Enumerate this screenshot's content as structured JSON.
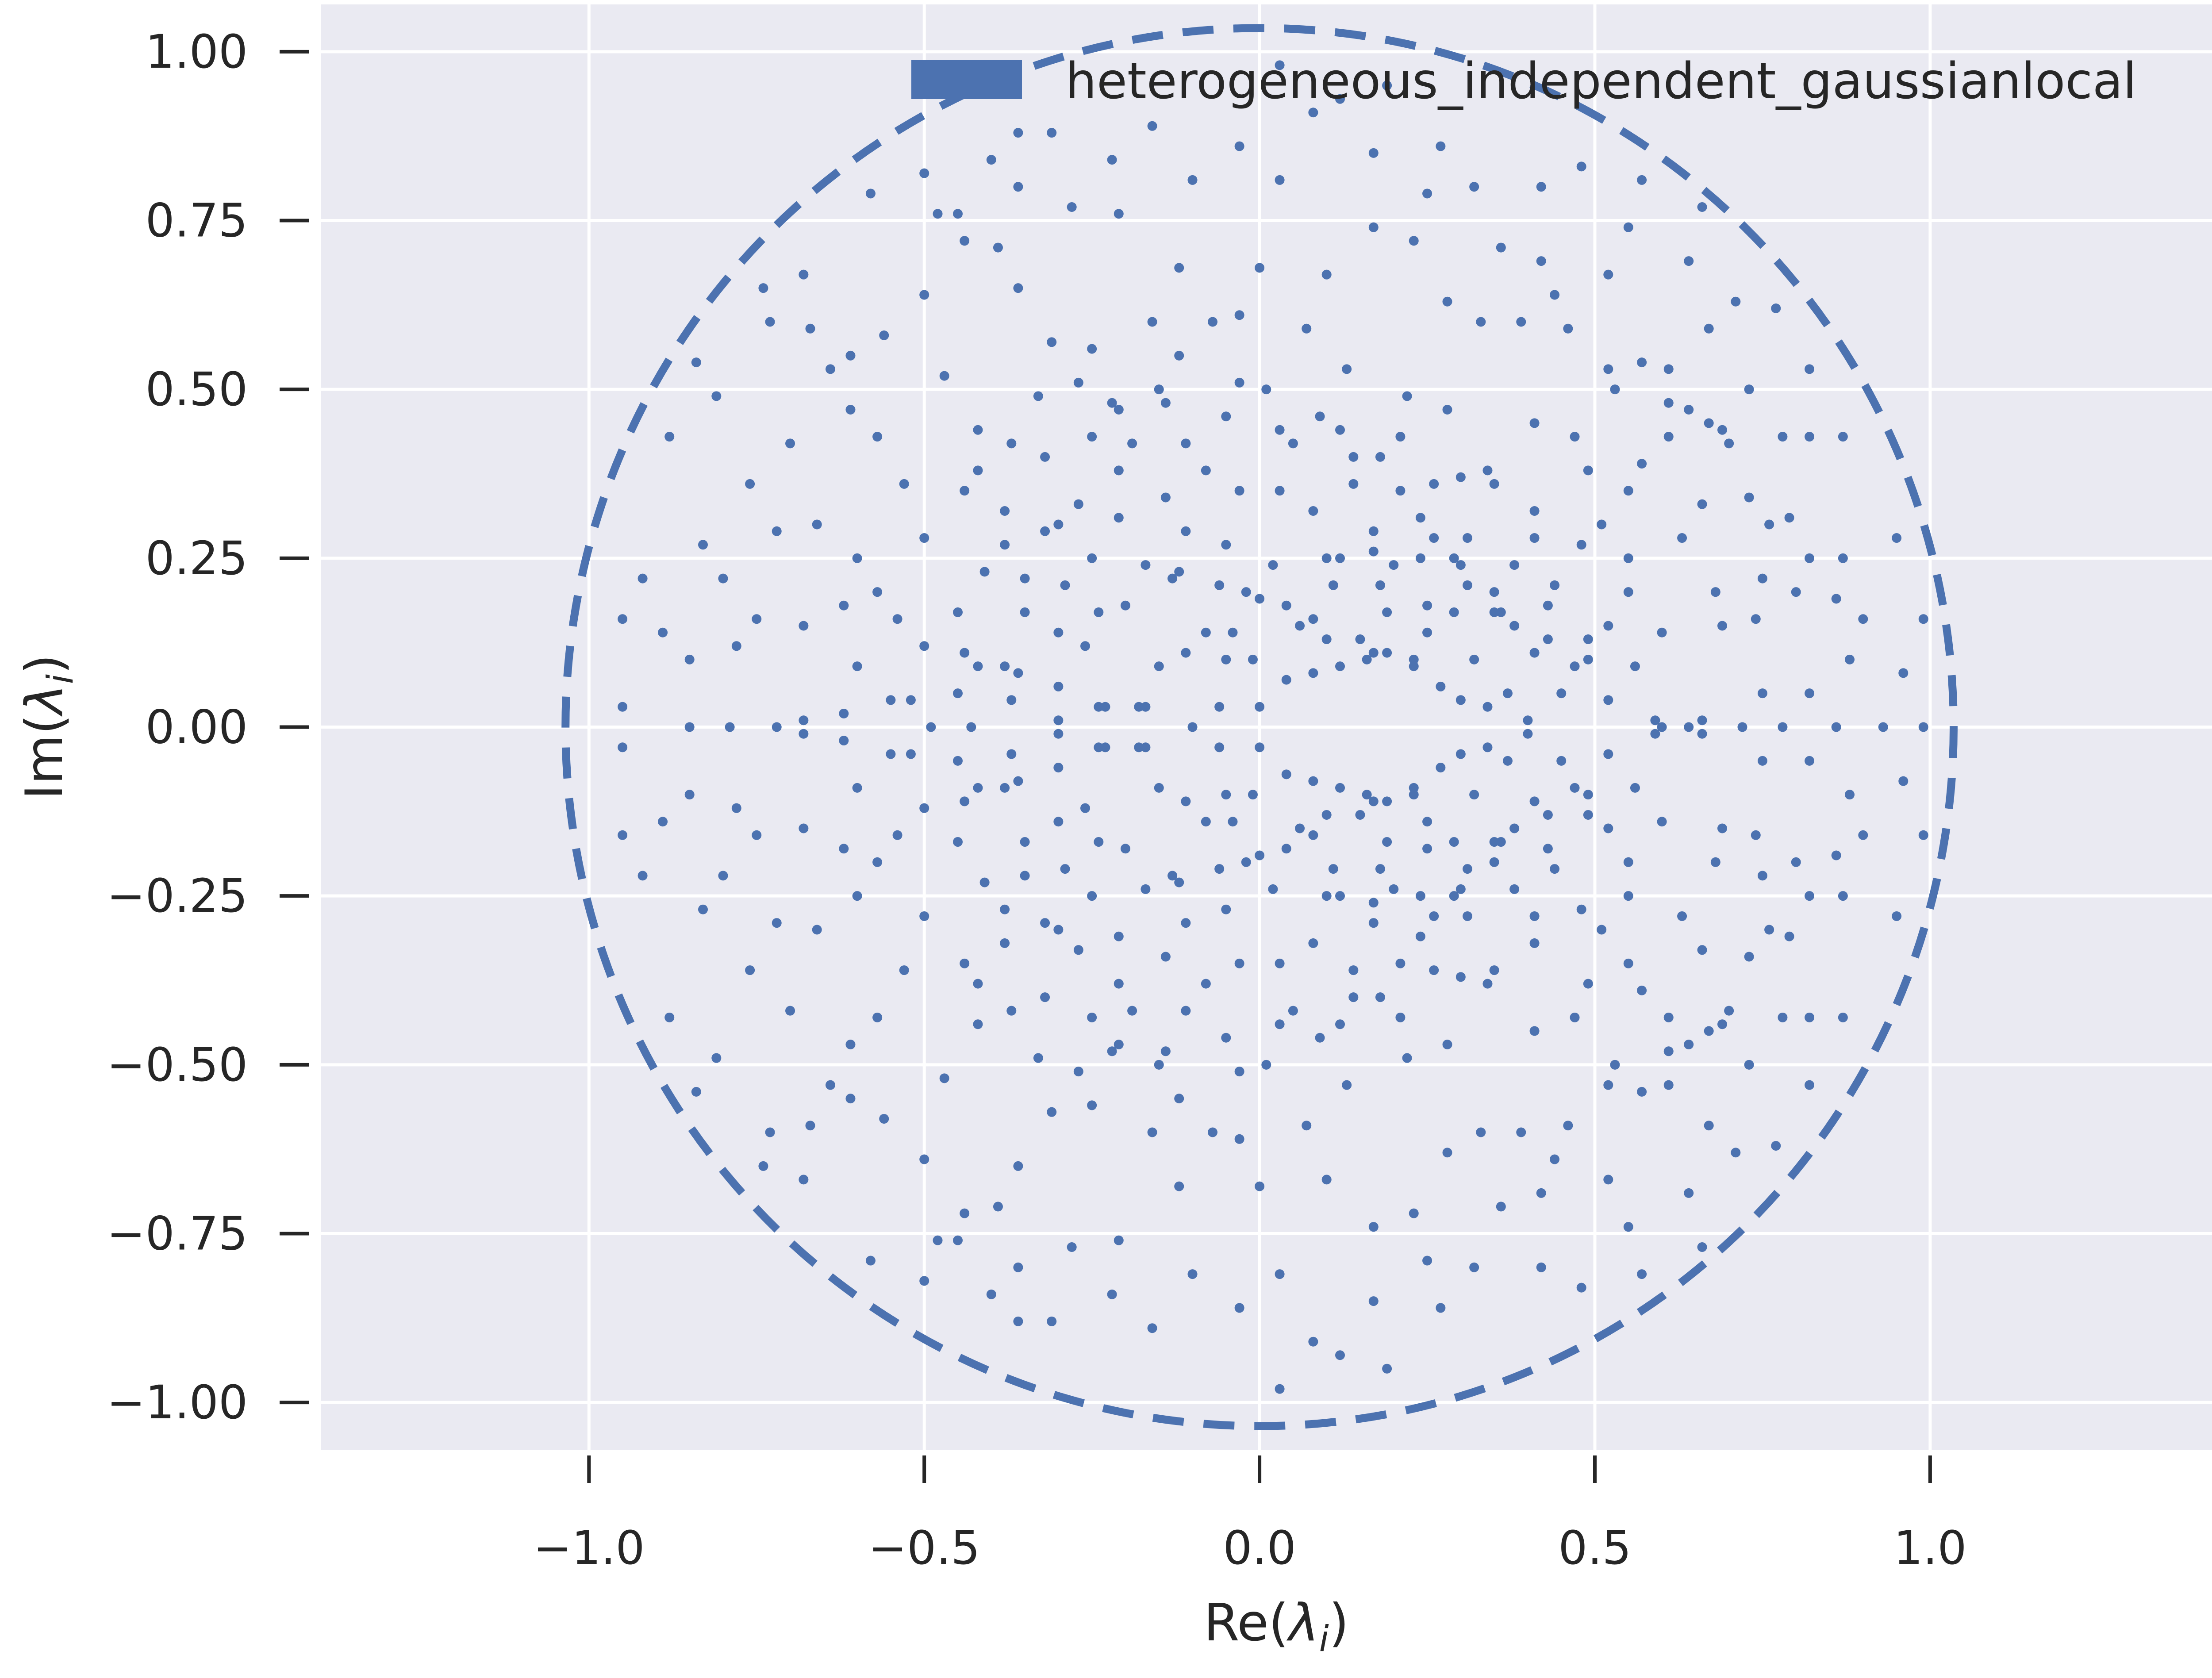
{
  "chart_data": {
    "type": "scatter",
    "title": "",
    "xlabel": "Re(λ_i)",
    "ylabel": "Im(λ_i)",
    "xlim": [
      -1.4,
      1.45
    ],
    "ylim": [
      -1.07,
      1.07
    ],
    "grid": true,
    "background": "#eaeaf2",
    "grid_color": "#ffffff",
    "series_color": "#4c72b0",
    "x_ticks": [
      {
        "value": -1.0,
        "label": "−1.0"
      },
      {
        "value": -0.5,
        "label": "−0.5"
      },
      {
        "value": 0.0,
        "label": "0.0"
      },
      {
        "value": 0.5,
        "label": "0.5"
      },
      {
        "value": 1.0,
        "label": "1.0"
      }
    ],
    "y_ticks": [
      {
        "value": 1.0,
        "label": "1.00"
      },
      {
        "value": 0.75,
        "label": "0.75"
      },
      {
        "value": 0.5,
        "label": "0.50"
      },
      {
        "value": 0.25,
        "label": "0.25"
      },
      {
        "value": 0.0,
        "label": "0.00"
      },
      {
        "value": -0.25,
        "label": "−0.25"
      },
      {
        "value": -0.5,
        "label": "−0.50"
      },
      {
        "value": -0.75,
        "label": "−0.75"
      },
      {
        "value": -1.0,
        "label": "−1.00"
      }
    ],
    "legend": {
      "label": "heterogeneous_independent_gaussianlocal",
      "placement": "top-right"
    },
    "reference_circle": {
      "center": [
        0,
        0
      ],
      "radius": 1.035,
      "style": "dashed"
    },
    "series": [
      {
        "name": "heterogeneous_independent_gaussianlocal",
        "points_upper": [
          [
            0.0,
            0.03
          ],
          [
            0.06,
            0.15
          ],
          [
            0.12,
            0.09
          ],
          [
            0.17,
            0.11
          ],
          [
            0.23,
            0.1
          ],
          [
            0.29,
            0.17
          ],
          [
            0.35,
            0.17
          ],
          [
            0.41,
            0.11
          ],
          [
            0.47,
            0.09
          ],
          [
            0.52,
            0.15
          ],
          [
            0.56,
            0.09
          ],
          [
            0.6,
            0.0
          ],
          [
            0.64,
            0.0
          ],
          [
            0.75,
            0.05
          ],
          [
            0.82,
            0.05
          ],
          [
            0.88,
            0.1
          ],
          [
            0.96,
            0.08
          ],
          [
            0.99,
            0.0
          ],
          [
            0.99,
            0.16
          ],
          [
            0.95,
            0.28
          ],
          [
            0.87,
            0.25
          ],
          [
            0.82,
            0.43
          ],
          [
            0.78,
            0.43
          ],
          [
            0.73,
            0.5
          ],
          [
            0.69,
            0.44
          ],
          [
            0.64,
            0.47
          ],
          [
            0.57,
            0.39
          ],
          [
            0.51,
            0.3
          ],
          [
            0.44,
            0.21
          ],
          [
            0.36,
            0.17
          ],
          [
            0.3,
            0.24
          ],
          [
            0.24,
            0.25
          ],
          [
            0.18,
            0.21
          ],
          [
            0.1,
            0.25
          ],
          [
            0.03,
            0.35
          ],
          [
            -0.03,
            0.35
          ],
          [
            -0.08,
            0.38
          ],
          [
            -0.14,
            0.48
          ],
          [
            -0.21,
            0.38
          ],
          [
            -0.27,
            0.33
          ],
          [
            -0.3,
            0.3
          ],
          [
            -0.38,
            0.27
          ],
          [
            -0.44,
            0.35
          ],
          [
            -0.5,
            0.28
          ],
          [
            -0.53,
            0.36
          ],
          [
            -0.57,
            0.43
          ],
          [
            -0.61,
            0.47
          ],
          [
            -0.64,
            0.53
          ],
          [
            -0.7,
            0.42
          ],
          [
            -0.76,
            0.36
          ],
          [
            -0.81,
            0.49
          ],
          [
            -0.84,
            0.54
          ],
          [
            -0.88,
            0.43
          ],
          [
            -0.95,
            0.16
          ],
          [
            -0.95,
            0.03
          ],
          [
            -0.92,
            0.22
          ],
          [
            -0.89,
            0.14
          ],
          [
            -0.83,
            0.27
          ],
          [
            -0.8,
            0.22
          ],
          [
            -0.75,
            0.16
          ],
          [
            -0.68,
            0.15
          ],
          [
            -0.62,
            0.18
          ],
          [
            -0.6,
            0.09
          ],
          [
            -0.52,
            0.04
          ],
          [
            -0.49,
            0.0
          ],
          [
            -0.43,
            0.0
          ],
          [
            -0.37,
            0.04
          ],
          [
            -0.3,
            0.01
          ],
          [
            -0.24,
            0.03
          ],
          [
            -0.17,
            0.03
          ],
          [
            -0.11,
            0.11
          ],
          [
            -0.05,
            0.1
          ],
          [
            0.02,
            0.24
          ],
          [
            0.08,
            0.32
          ],
          [
            0.12,
            0.25
          ],
          [
            0.17,
            0.26
          ],
          [
            0.24,
            0.31
          ],
          [
            0.3,
            0.37
          ],
          [
            0.35,
            0.36
          ],
          [
            0.41,
            0.45
          ],
          [
            0.47,
            0.43
          ],
          [
            0.53,
            0.5
          ],
          [
            0.61,
            0.53
          ],
          [
            0.67,
            0.59
          ],
          [
            0.71,
            0.63
          ],
          [
            0.77,
            0.62
          ],
          [
            0.82,
            0.53
          ],
          [
            0.87,
            0.43
          ],
          [
            0.82,
            0.25
          ],
          [
            0.8,
            0.2
          ],
          [
            0.74,
            0.16
          ],
          [
            0.68,
            0.2
          ],
          [
            0.6,
            0.14
          ],
          [
            0.55,
            0.2
          ],
          [
            0.49,
            0.13
          ],
          [
            0.43,
            0.18
          ],
          [
            0.38,
            0.24
          ],
          [
            0.31,
            0.28
          ],
          [
            0.26,
            0.36
          ],
          [
            0.18,
            0.4
          ],
          [
            0.12,
            0.44
          ],
          [
            0.05,
            0.42
          ],
          [
            0.01,
            0.5
          ],
          [
            -0.05,
            0.46
          ],
          [
            -0.11,
            0.42
          ],
          [
            -0.15,
            0.5
          ],
          [
            -0.21,
            0.47
          ],
          [
            -0.25,
            0.43
          ],
          [
            -0.32,
            0.4
          ],
          [
            -0.37,
            0.42
          ],
          [
            -0.42,
            0.44
          ],
          [
            -0.47,
            0.52
          ],
          [
            -0.5,
            0.64
          ],
          [
            -0.56,
            0.58
          ],
          [
            -0.61,
            0.55
          ],
          [
            -0.67,
            0.59
          ],
          [
            -0.73,
            0.6
          ],
          [
            -0.74,
            0.65
          ],
          [
            -0.68,
            0.67
          ],
          [
            -0.58,
            0.79
          ],
          [
            -0.5,
            0.82
          ],
          [
            -0.45,
            0.76
          ],
          [
            -0.39,
            0.71
          ],
          [
            -0.36,
            0.8
          ],
          [
            -0.31,
            0.88
          ],
          [
            -0.22,
            0.84
          ],
          [
            -0.16,
            0.89
          ],
          [
            -0.1,
            0.81
          ],
          [
            -0.03,
            0.86
          ],
          [
            0.03,
            0.81
          ],
          [
            0.1,
            0.67
          ],
          [
            0.17,
            0.74
          ],
          [
            0.23,
            0.72
          ],
          [
            0.28,
            0.63
          ],
          [
            0.33,
            0.6
          ],
          [
            0.39,
            0.6
          ],
          [
            0.44,
            0.64
          ],
          [
            0.52,
            0.67
          ],
          [
            0.55,
            0.74
          ],
          [
            0.64,
            0.69
          ],
          [
            0.66,
            0.77
          ],
          [
            0.57,
            0.81
          ],
          [
            0.48,
            0.83
          ],
          [
            0.42,
            0.8
          ],
          [
            0.32,
            0.8
          ],
          [
            0.25,
            0.79
          ],
          [
            0.17,
            0.85
          ],
          [
            0.08,
            0.91
          ],
          [
            0.03,
            0.98
          ],
          [
            0.12,
            0.93
          ],
          [
            0.19,
            0.95
          ],
          [
            0.27,
            0.86
          ],
          [
            0.36,
            0.71
          ],
          [
            0.42,
            0.69
          ],
          [
            0.46,
            0.59
          ],
          [
            0.52,
            0.53
          ],
          [
            0.57,
            0.54
          ],
          [
            0.61,
            0.48
          ],
          [
            0.66,
            0.33
          ],
          [
            0.7,
            0.42
          ],
          [
            0.76,
            0.3
          ],
          [
            0.75,
            0.22
          ],
          [
            0.69,
            0.15
          ],
          [
            0.63,
            0.28
          ],
          [
            0.55,
            0.25
          ],
          [
            0.48,
            0.27
          ],
          [
            0.41,
            0.32
          ],
          [
            0.34,
            0.38
          ],
          [
            0.28,
            0.47
          ],
          [
            0.22,
            0.49
          ],
          [
            0.13,
            0.53
          ],
          [
            0.07,
            0.59
          ],
          [
            0.0,
            0.68
          ],
          [
            -0.03,
            0.61
          ],
          [
            -0.12,
            0.55
          ],
          [
            -0.16,
            0.6
          ],
          [
            -0.25,
            0.56
          ],
          [
            -0.31,
            0.57
          ],
          [
            -0.36,
            0.65
          ],
          [
            -0.44,
            0.72
          ],
          [
            -0.48,
            0.76
          ],
          [
            -0.4,
            0.84
          ],
          [
            -0.36,
            0.88
          ],
          [
            -0.28,
            0.77
          ],
          [
            -0.21,
            0.76
          ],
          [
            -0.12,
            0.68
          ],
          [
            -0.07,
            0.6
          ],
          [
            -0.03,
            0.51
          ],
          [
            0.03,
            0.44
          ],
          [
            0.09,
            0.46
          ],
          [
            0.14,
            0.4
          ],
          [
            0.17,
            0.29
          ],
          [
            0.21,
            0.35
          ],
          [
            0.26,
            0.28
          ],
          [
            0.31,
            0.21
          ],
          [
            0.38,
            0.15
          ],
          [
            0.43,
            0.13
          ],
          [
            0.49,
            0.1
          ],
          [
            0.52,
            0.04
          ],
          [
            0.59,
            0.01
          ],
          [
            0.66,
            0.01
          ],
          [
            0.72,
            0.0
          ],
          [
            0.78,
            0.0
          ],
          [
            0.86,
            0.0
          ],
          [
            0.93,
            0.0
          ],
          [
            0.9,
            0.16
          ],
          [
            0.86,
            0.19
          ],
          [
            0.79,
            0.31
          ],
          [
            0.73,
            0.34
          ],
          [
            0.67,
            0.45
          ],
          [
            0.61,
            0.43
          ],
          [
            0.55,
            0.35
          ],
          [
            0.49,
            0.38
          ],
          [
            0.41,
            0.28
          ],
          [
            0.35,
            0.2
          ],
          [
            0.29,
            0.25
          ],
          [
            0.25,
            0.18
          ],
          [
            0.19,
            0.11
          ],
          [
            0.15,
            0.13
          ],
          [
            0.08,
            0.08
          ],
          [
            0.11,
            0.21
          ],
          [
            0.04,
            0.18
          ],
          [
            -0.02,
            0.2
          ],
          [
            -0.06,
            0.21
          ],
          [
            -0.13,
            0.22
          ],
          [
            -0.2,
            0.18
          ],
          [
            -0.24,
            0.17
          ],
          [
            -0.3,
            0.14
          ],
          [
            -0.35,
            0.17
          ],
          [
            -0.38,
            0.09
          ],
          [
            -0.44,
            0.11
          ],
          [
            -0.5,
            0.12
          ],
          [
            -0.54,
            0.16
          ],
          [
            -0.57,
            0.2
          ],
          [
            -0.6,
            0.25
          ],
          [
            -0.66,
            0.3
          ],
          [
            -0.72,
            0.29
          ],
          [
            -0.78,
            0.12
          ],
          [
            -0.85,
            0.1
          ],
          [
            -0.85,
            0.0
          ],
          [
            -0.79,
            0.0
          ],
          [
            -0.72,
            0.0
          ],
          [
            -0.68,
            0.01
          ],
          [
            -0.62,
            0.02
          ],
          [
            -0.55,
            0.04
          ],
          [
            -0.45,
            0.05
          ],
          [
            -0.42,
            0.09
          ],
          [
            -0.36,
            0.08
          ],
          [
            -0.3,
            0.06
          ],
          [
            -0.23,
            0.03
          ],
          [
            -0.18,
            0.03
          ],
          [
            -0.1,
            0.0
          ],
          [
            -0.06,
            0.03
          ],
          [
            0.04,
            0.07
          ],
          [
            0.1,
            0.13
          ],
          [
            0.16,
            0.1
          ],
          [
            0.23,
            0.09
          ],
          [
            0.27,
            0.06
          ],
          [
            0.3,
            0.04
          ],
          [
            0.34,
            0.03
          ],
          [
            0.4,
            0.01
          ],
          [
            0.45,
            0.05
          ],
          [
            -0.32,
            0.29
          ],
          [
            -0.38,
            0.32
          ],
          [
            -0.42,
            0.38
          ],
          [
            -0.33,
            0.49
          ],
          [
            -0.27,
            0.51
          ],
          [
            -0.22,
            0.48
          ],
          [
            -0.19,
            0.42
          ],
          [
            -0.14,
            0.34
          ],
          [
            -0.11,
            0.29
          ],
          [
            -0.05,
            0.27
          ],
          [
            0.0,
            0.19
          ],
          [
            -0.08,
            0.14
          ],
          [
            -0.15,
            0.09
          ],
          [
            -0.26,
            0.12
          ],
          [
            -0.29,
            0.21
          ],
          [
            -0.25,
            0.25
          ],
          [
            -0.21,
            0.31
          ],
          [
            -0.17,
            0.24
          ],
          [
            -0.12,
            0.23
          ],
          [
            -0.35,
            0.22
          ],
          [
            -0.41,
            0.23
          ],
          [
            -0.45,
            0.17
          ],
          [
            0.2,
            0.24
          ],
          [
            0.25,
            0.14
          ],
          [
            0.19,
            0.17
          ],
          [
            0.32,
            0.1
          ],
          [
            0.37,
            0.05
          ],
          [
            -0.01,
            0.1
          ],
          [
            -0.04,
            0.14
          ],
          [
            0.14,
            0.36
          ],
          [
            0.21,
            0.43
          ],
          [
            0.08,
            0.16
          ]
        ]
      }
    ]
  }
}
